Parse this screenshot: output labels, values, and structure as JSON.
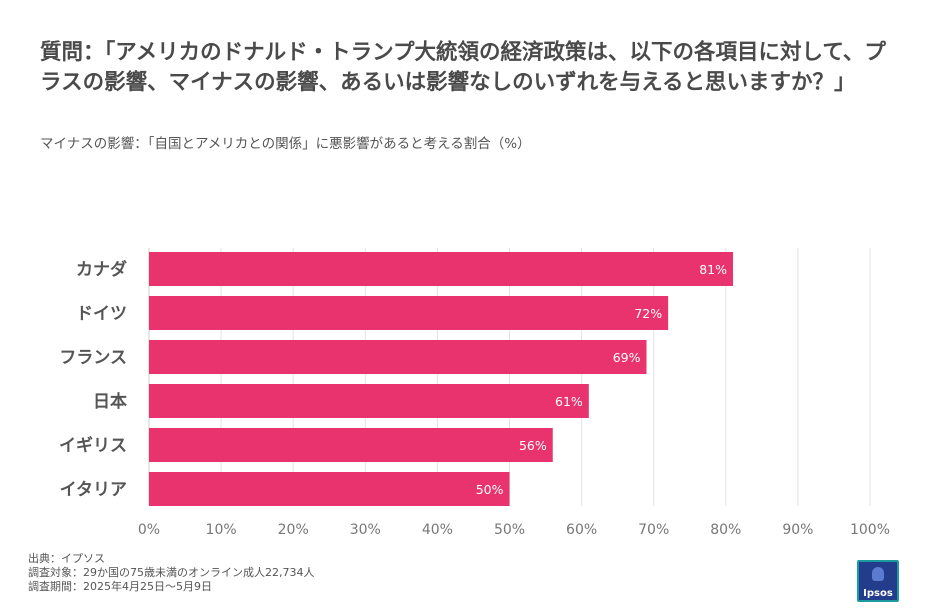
{
  "title": "質問：「アメリカのドナルド・トランプ大統領の経済政策は、以下の各項目に対して、プラスの影響、マイナスの影響、あるいは影響なしのいずれを与えると思いますか？」",
  "subtitle": "マイナスの影響：「自国とアメリカとの関係」に悪影響があると考える割合（%）",
  "chart_data": {
    "type": "bar",
    "orientation": "horizontal",
    "categories": [
      "カナダ",
      "ドイツ",
      "フランス",
      "日本",
      "イギリス",
      "イタリア"
    ],
    "values": [
      81,
      72,
      69,
      61,
      56,
      50
    ],
    "value_labels": [
      "81%",
      "72%",
      "69%",
      "61%",
      "56%",
      "50%"
    ],
    "xlim": [
      0,
      100
    ],
    "x_ticks": [
      0,
      10,
      20,
      30,
      40,
      50,
      60,
      70,
      80,
      90,
      100
    ],
    "x_tick_labels": [
      "0%",
      "10%",
      "20%",
      "30%",
      "40%",
      "50%",
      "60%",
      "70%",
      "80%",
      "90%",
      "100%"
    ],
    "grid": true,
    "bar_color": "#e8336f"
  },
  "footer": {
    "source": "出典：イプソス",
    "target": "調査対象：29か国の75歳未満のオンライン成人22,734人",
    "period": "調査期間：2025年4月25日～5月9日"
  },
  "logo": {
    "text": "Ipsos",
    "icon": "ipsos-logo-icon"
  }
}
